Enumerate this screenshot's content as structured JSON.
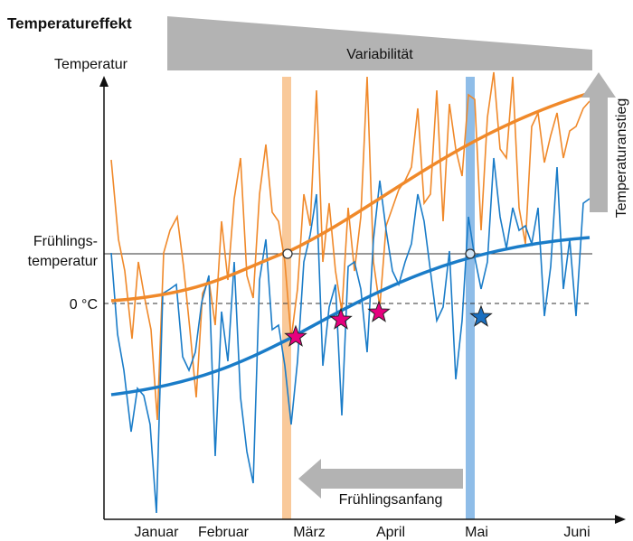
{
  "header": {
    "title": "Temperatureffekt"
  },
  "labels": {
    "variability": "Variabilität",
    "y_axis": "Temperatur",
    "rise": "Temperaturanstieg",
    "spring_temp_1": "Frühlings-",
    "spring_temp_2": "temperatur",
    "zero": "0 °C",
    "spring_start": "Frühlingsanfang"
  },
  "months": [
    "Januar",
    "Februar",
    "März",
    "April",
    "Mai",
    "Juni"
  ]
}
